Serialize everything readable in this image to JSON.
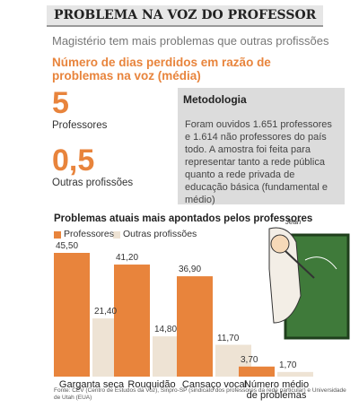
{
  "header": {
    "title": "PROBLEMA NA VOZ DO PROFESSOR",
    "subtitle": "Magistério tem mais problemas que outras profissões"
  },
  "days": {
    "heading": "Número de dias perdidos em razão de problemas na voz (média)",
    "stats": [
      {
        "number": "5",
        "label": "Professores"
      },
      {
        "number": "0,5",
        "label": "Outras profissões"
      }
    ]
  },
  "methodology": {
    "title": "Metodologia",
    "text": "Foram ouvidos 1.651 professores e 1.614 não professores do país todo. A amostra foi feita para representar tanto a rede pública quanto a rede privada de educação básica (fundamental e médio)"
  },
  "illustration": {
    "signature": "Jean"
  },
  "chart_data": {
    "type": "bar",
    "title": "Problemas atuais mais apontados pelos professores",
    "categories": [
      "Garganta seca",
      "Rouquidão",
      "Cansaço vocal",
      "Número médio de problemas"
    ],
    "series": [
      {
        "name": "Professores",
        "color": "#e8843c",
        "values": [
          45.5,
          41.2,
          36.9,
          3.7
        ],
        "value_labels": [
          "45,50",
          "41,20",
          "36,90",
          "3,70"
        ]
      },
      {
        "name": "Outras profissões",
        "color": "#eee3d4",
        "values": [
          21.4,
          14.8,
          11.7,
          1.7
        ],
        "value_labels": [
          "21,40",
          "14,80",
          "11,70",
          "1,70"
        ]
      }
    ]
  },
  "footer": {
    "source": "Fonte: CEV (Centro de Estudos da Voz), Sinpro-SP (sindicato dos professores da rede particular) e Universidade de Utah (EUA)"
  }
}
